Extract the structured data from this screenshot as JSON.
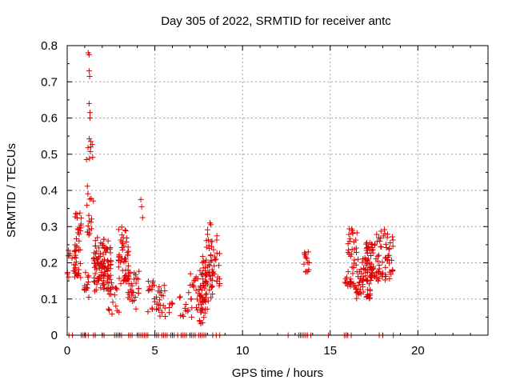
{
  "chart_data": {
    "type": "scatter",
    "title": "Day 305 of 2022, SRMTID for receiver antc",
    "xlabel": "GPS time / hours",
    "ylabel": "SRMTID / TECUs",
    "xlim": [
      0,
      24
    ],
    "ylim": [
      0,
      0.8
    ],
    "xticks": [
      0,
      5,
      10,
      15,
      20
    ],
    "yticks": [
      0,
      0.1,
      0.2,
      0.3,
      0.4,
      0.5,
      0.6,
      0.7,
      0.8
    ],
    "grid": true,
    "marker": "+",
    "color": "#dd0000",
    "series": [
      {
        "name": "SRMTID",
        "clusters": [
          {
            "x": [
              0.0,
              0.5
            ],
            "y": [
              0.13,
              0.24
            ],
            "n": 14
          },
          {
            "x": [
              0.4,
              0.8
            ],
            "y": [
              0.15,
              0.34
            ],
            "n": 40
          },
          {
            "x": [
              0.95,
              1.25
            ],
            "y": [
              0.09,
              0.18
            ],
            "n": 14
          },
          {
            "x": [
              1.1,
              1.5
            ],
            "y": [
              0.25,
              0.55
            ],
            "n": 26
          },
          {
            "x": [
              1.5,
              2.5
            ],
            "y": [
              0.11,
              0.27
            ],
            "n": 110
          },
          {
            "x": [
              2.3,
              3.0
            ],
            "y": [
              0.05,
              0.15
            ],
            "n": 16
          },
          {
            "x": [
              2.9,
              3.5
            ],
            "y": [
              0.14,
              0.3
            ],
            "n": 48
          },
          {
            "x": [
              3.4,
              4.1
            ],
            "y": [
              0.07,
              0.18
            ],
            "n": 32
          },
          {
            "x": [
              4.6,
              5.6
            ],
            "y": [
              0.05,
              0.16
            ],
            "n": 36
          },
          {
            "x": [
              5.8,
              6.1
            ],
            "y": [
              0.06,
              0.1
            ],
            "n": 6
          },
          {
            "x": [
              6.4,
              6.9
            ],
            "y": [
              0.05,
              0.11
            ],
            "n": 10
          },
          {
            "x": [
              6.9,
              7.9
            ],
            "y": [
              0.03,
              0.18
            ],
            "n": 55
          },
          {
            "x": [
              7.7,
              8.3
            ],
            "y": [
              0.07,
              0.22
            ],
            "n": 45
          },
          {
            "x": [
              7.9,
              8.2
            ],
            "y": [
              0.22,
              0.31
            ],
            "n": 10
          },
          {
            "x": [
              8.2,
              8.7
            ],
            "y": [
              0.13,
              0.29
            ],
            "n": 26
          },
          {
            "x": [
              13.5,
              13.8
            ],
            "y": [
              0.17,
              0.23
            ],
            "n": 12
          },
          {
            "x": [
              15.8,
              16.2
            ],
            "y": [
              0.13,
              0.16
            ],
            "n": 8
          },
          {
            "x": [
              16.0,
              16.6
            ],
            "y": [
              0.12,
              0.3
            ],
            "n": 40
          },
          {
            "x": [
              16.5,
              17.3
            ],
            "y": [
              0.1,
              0.22
            ],
            "n": 55
          },
          {
            "x": [
              17.0,
              17.8
            ],
            "y": [
              0.14,
              0.26
            ],
            "n": 55
          },
          {
            "x": [
              17.6,
              18.6
            ],
            "y": [
              0.15,
              0.3
            ],
            "n": 50
          }
        ],
        "outliers": [
          {
            "x": 1.2,
            "y": 0.78
          },
          {
            "x": 1.25,
            "y": 0.775
          },
          {
            "x": 1.25,
            "y": 0.73
          },
          {
            "x": 1.28,
            "y": 0.715
          },
          {
            "x": 1.25,
            "y": 0.64
          },
          {
            "x": 1.3,
            "y": 0.615
          },
          {
            "x": 1.3,
            "y": 0.6
          },
          {
            "x": 4.2,
            "y": 0.375
          },
          {
            "x": 4.25,
            "y": 0.355
          },
          {
            "x": 4.3,
            "y": 0.325
          },
          {
            "x": 13.75,
            "y": 0.23
          },
          {
            "x": 13.6,
            "y": 0.175
          }
        ],
        "zero_points": [
          0.1,
          0.3,
          0.8,
          0.9,
          1.0,
          1.05,
          1.2,
          1.5,
          1.6,
          2.0,
          2.1,
          2.7,
          2.8,
          2.9,
          3.0,
          3.1,
          3.5,
          3.6,
          3.7,
          4.0,
          4.1,
          4.2,
          4.3,
          4.4,
          4.5,
          4.6,
          5.0,
          5.1,
          5.2,
          5.4,
          5.5,
          5.6,
          5.7,
          5.9,
          6.0,
          6.1,
          6.3,
          6.5,
          6.6,
          6.7,
          6.8,
          7.0,
          7.1,
          7.2,
          7.3,
          7.5,
          7.6,
          7.7,
          7.8,
          7.9,
          8.3,
          8.5,
          8.7,
          12.6,
          13.2,
          13.3,
          13.4,
          13.5,
          13.6,
          13.7,
          13.9,
          14.9,
          15.8,
          15.9,
          16.0,
          16.2,
          17.8,
          18.0,
          18.6
        ]
      }
    ]
  }
}
